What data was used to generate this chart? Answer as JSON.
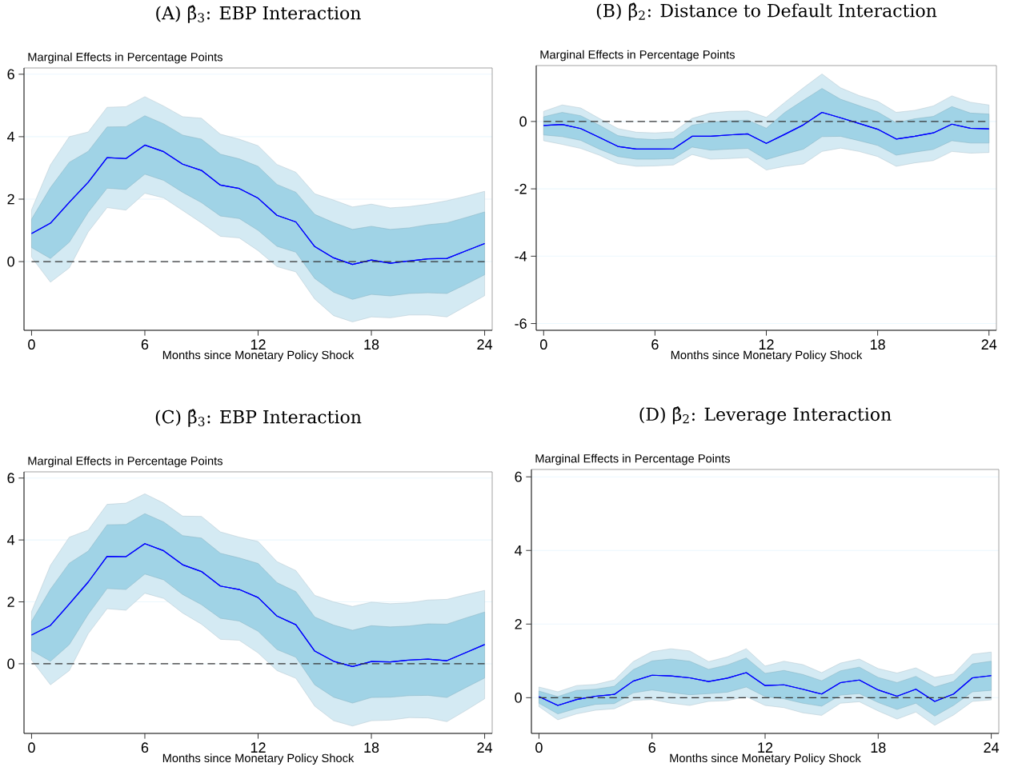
{
  "chart_data": [
    {
      "type": "line",
      "title": "(A) β̂$_{3}$: EBP Interaction",
      "ylabel": "Marginal Effects in Percentage Points",
      "xlabel": "Months since Monetary Policy Shock",
      "x": [
        0,
        1,
        2,
        3,
        4,
        5,
        6,
        7,
        8,
        9,
        10,
        11,
        12,
        13,
        14,
        15,
        16,
        17,
        18,
        19,
        20,
        21,
        22,
        23,
        24
      ],
      "xlim": [
        -0.4,
        24.4
      ],
      "ylim": [
        -2.2,
        6.2
      ],
      "xticks": [
        0,
        6,
        12,
        18,
        24
      ],
      "yticks": [
        0,
        2,
        4,
        6
      ],
      "grid": "y",
      "ref_lines": [
        {
          "axis": "y",
          "value": 0,
          "line_style": "dashed",
          "color": "#333333"
        }
      ],
      "series": [
        {
          "color": "#0000ff",
          "values": [
            0.9,
            1.23,
            1.9,
            2.54,
            3.33,
            3.3,
            3.73,
            3.52,
            3.12,
            2.92,
            2.45,
            2.34,
            2.03,
            1.48,
            1.27,
            0.48,
            0.12,
            -0.09,
            0.05,
            -0.05,
            0.02,
            0.09,
            0.1,
            0.34,
            0.58
          ],
          "lower": [
            0.14,
            -0.66,
            -0.2,
            0.95,
            1.73,
            1.65,
            2.19,
            2.04,
            1.64,
            1.24,
            0.81,
            0.76,
            0.35,
            -0.16,
            -0.33,
            -1.2,
            -1.73,
            -1.93,
            -1.77,
            -1.8,
            -1.71,
            -1.71,
            -1.77,
            -1.43,
            -1.09
          ],
          "upper": [
            1.66,
            3.1,
            4.0,
            4.15,
            4.94,
            4.96,
            5.28,
            4.98,
            4.64,
            4.59,
            4.08,
            3.92,
            3.71,
            3.11,
            2.86,
            2.17,
            1.97,
            1.75,
            1.84,
            1.72,
            1.76,
            1.84,
            1.95,
            2.09,
            2.25
          ]
        },
        {
          "color": "#0000ff",
          "values": [
            0.9,
            1.23,
            1.9,
            2.54,
            3.33,
            3.3,
            3.73,
            3.52,
            3.12,
            2.92,
            2.45,
            2.34,
            2.03,
            1.48,
            1.27,
            0.48,
            0.12,
            -0.09,
            0.05,
            -0.05,
            0.02,
            0.09,
            0.1,
            0.34,
            0.58
          ],
          "lower": [
            0.45,
            0.1,
            0.62,
            1.58,
            2.35,
            2.31,
            2.8,
            2.6,
            2.22,
            1.89,
            1.46,
            1.38,
            1.0,
            0.49,
            0.3,
            -0.54,
            -0.98,
            -1.21,
            -1.05,
            -1.1,
            -1.02,
            -1.0,
            -1.02,
            -0.73,
            -0.42
          ],
          "upper": [
            1.36,
            2.37,
            3.18,
            3.53,
            4.31,
            4.32,
            4.67,
            4.41,
            4.05,
            3.92,
            3.44,
            3.29,
            3.05,
            2.47,
            2.22,
            1.51,
            1.25,
            1.03,
            1.13,
            1.03,
            1.08,
            1.18,
            1.24,
            1.41,
            1.59
          ]
        }
      ]
    },
    {
      "type": "line",
      "title": "(B) β̂$_{2}$: Distance to Default Interaction",
      "ylabel": "Marginal Effects in Percentage Points",
      "xlabel": "Months since Monetary Policy Shock",
      "x": [
        0,
        1,
        2,
        3,
        4,
        5,
        6,
        7,
        8,
        9,
        10,
        11,
        12,
        13,
        14,
        15,
        16,
        17,
        18,
        19,
        20,
        21,
        22,
        23,
        24
      ],
      "xlim": [
        -0.4,
        24.4
      ],
      "ylim": [
        -6.2,
        1.66
      ],
      "xticks": [
        0,
        6,
        12,
        18,
        24
      ],
      "yticks": [
        -6,
        -4,
        -2,
        0
      ],
      "grid": "y",
      "ref_lines": [
        {
          "axis": "y",
          "value": 0,
          "line_style": "dashed",
          "color": "#333333"
        }
      ],
      "series": [
        {
          "color": "#0000ff",
          "values": [
            -0.12,
            -0.09,
            -0.21,
            -0.47,
            -0.74,
            -0.82,
            -0.82,
            -0.81,
            -0.44,
            -0.44,
            -0.4,
            -0.37,
            -0.65,
            -0.38,
            -0.1,
            0.27,
            0.11,
            -0.06,
            -0.23,
            -0.52,
            -0.44,
            -0.34,
            -0.08,
            -0.2,
            -0.22
          ],
          "lower": [
            -0.57,
            -0.68,
            -0.8,
            -1.0,
            -1.25,
            -1.33,
            -1.32,
            -1.29,
            -0.98,
            -1.12,
            -1.1,
            -1.07,
            -1.44,
            -1.33,
            -1.26,
            -0.89,
            -0.79,
            -0.89,
            -1.04,
            -1.33,
            -1.23,
            -1.16,
            -0.89,
            -0.94,
            -0.92
          ],
          "upper": [
            0.3,
            0.49,
            0.4,
            0.09,
            -0.21,
            -0.32,
            -0.34,
            -0.31,
            0.09,
            0.25,
            0.3,
            0.31,
            0.12,
            0.57,
            1.0,
            1.41,
            1.0,
            0.77,
            0.6,
            0.27,
            0.33,
            0.46,
            0.76,
            0.57,
            0.49
          ]
        },
        {
          "color": "#0000ff",
          "values": [
            -0.12,
            -0.09,
            -0.21,
            -0.47,
            -0.74,
            -0.82,
            -0.82,
            -0.81,
            -0.44,
            -0.44,
            -0.4,
            -0.37,
            -0.65,
            -0.38,
            -0.1,
            0.27,
            0.11,
            -0.06,
            -0.23,
            -0.52,
            -0.44,
            -0.34,
            -0.08,
            -0.2,
            -0.22
          ],
          "lower": [
            -0.4,
            -0.45,
            -0.56,
            -0.82,
            -1.04,
            -1.12,
            -1.12,
            -1.1,
            -0.76,
            -0.85,
            -0.82,
            -0.8,
            -1.13,
            -0.97,
            -0.82,
            -0.45,
            -0.44,
            -0.57,
            -0.71,
            -1.0,
            -0.91,
            -0.83,
            -0.57,
            -0.64,
            -0.64
          ],
          "upper": [
            0.14,
            0.27,
            0.17,
            -0.11,
            -0.42,
            -0.51,
            -0.54,
            -0.51,
            -0.11,
            -0.02,
            0.02,
            0.04,
            -0.2,
            0.27,
            0.63,
            0.98,
            0.66,
            0.47,
            0.28,
            -0.04,
            0.08,
            0.15,
            0.44,
            0.25,
            0.22
          ]
        }
      ]
    },
    {
      "type": "line",
      "title": "(C) β̂$_{3}$: EBP Interaction",
      "ylabel": "Marginal Effects in Percentage Points",
      "xlabel": "Months since Monetary Policy Shock",
      "x": [
        0,
        1,
        2,
        3,
        4,
        5,
        6,
        7,
        8,
        9,
        10,
        11,
        12,
        13,
        14,
        15,
        16,
        17,
        18,
        19,
        20,
        21,
        22,
        23,
        24
      ],
      "xlim": [
        -0.4,
        24.4
      ],
      "ylim": [
        -2.25,
        6.2
      ],
      "xticks": [
        0,
        6,
        12,
        18,
        24
      ],
      "yticks": [
        0,
        2,
        4,
        6
      ],
      "grid": "y",
      "ref_lines": [
        {
          "axis": "y",
          "value": 0,
          "line_style": "dashed",
          "color": "#333333"
        }
      ],
      "series": [
        {
          "color": "#0000ff",
          "values": [
            0.93,
            1.24,
            1.93,
            2.64,
            3.47,
            3.46,
            3.88,
            3.65,
            3.2,
            2.98,
            2.51,
            2.4,
            2.14,
            1.54,
            1.26,
            0.41,
            0.08,
            -0.09,
            0.07,
            0.06,
            0.12,
            0.15,
            0.1,
            0.36,
            0.62
          ],
          "lower": [
            0.12,
            -0.68,
            -0.22,
            0.97,
            1.78,
            1.73,
            2.28,
            2.11,
            1.64,
            1.28,
            0.79,
            0.76,
            0.35,
            -0.22,
            -0.47,
            -1.37,
            -1.84,
            -2.01,
            -1.84,
            -1.82,
            -1.74,
            -1.75,
            -1.87,
            -1.51,
            -1.13
          ],
          "upper": [
            1.69,
            3.18,
            4.09,
            4.32,
            5.15,
            5.19,
            5.49,
            5.19,
            4.77,
            4.76,
            4.26,
            4.09,
            3.95,
            3.3,
            3.01,
            2.21,
            2.0,
            1.85,
            1.99,
            1.94,
            1.97,
            2.06,
            2.08,
            2.23,
            2.37
          ]
        },
        {
          "color": "#0000ff",
          "values": [
            0.93,
            1.24,
            1.93,
            2.64,
            3.47,
            3.46,
            3.88,
            3.65,
            3.2,
            2.98,
            2.51,
            2.4,
            2.14,
            1.54,
            1.26,
            0.41,
            0.08,
            -0.09,
            0.07,
            0.06,
            0.12,
            0.15,
            0.1,
            0.36,
            0.62
          ],
          "lower": [
            0.43,
            0.08,
            0.62,
            1.6,
            2.43,
            2.4,
            2.9,
            2.71,
            2.24,
            1.91,
            1.47,
            1.38,
            1.05,
            0.46,
            0.21,
            -0.68,
            -1.08,
            -1.27,
            -1.09,
            -1.08,
            -1.03,
            -1.02,
            -1.09,
            -0.77,
            -0.46
          ],
          "upper": [
            1.37,
            2.41,
            3.25,
            3.64,
            4.49,
            4.5,
            4.85,
            4.58,
            4.14,
            4.06,
            3.57,
            3.42,
            3.24,
            2.62,
            2.33,
            1.51,
            1.25,
            1.08,
            1.23,
            1.19,
            1.22,
            1.29,
            1.28,
            1.48,
            1.67
          ]
        }
      ]
    },
    {
      "type": "line",
      "title": "(D) β̂$_{2}$: Leverage Interaction",
      "ylabel": "Marginal Effects in Percentage Points",
      "xlabel": "Months since Monetary Policy Shock",
      "x": [
        0,
        1,
        2,
        3,
        4,
        5,
        6,
        7,
        8,
        9,
        10,
        11,
        12,
        13,
        14,
        15,
        16,
        17,
        18,
        19,
        20,
        21,
        22,
        23,
        24
      ],
      "xlim": [
        -0.4,
        24.4
      ],
      "ylim": [
        -0.97,
        6.2
      ],
      "xticks": [
        0,
        6,
        12,
        18,
        24
      ],
      "yticks": [
        0,
        2,
        4,
        6
      ],
      "grid": "y",
      "ref_lines": [
        {
          "axis": "y",
          "value": 0,
          "line_style": "dashed",
          "color": "#333333"
        }
      ],
      "series": [
        {
          "color": "#0000ff",
          "values": [
            0.03,
            -0.21,
            -0.05,
            0.04,
            0.09,
            0.45,
            0.61,
            0.59,
            0.54,
            0.44,
            0.53,
            0.68,
            0.33,
            0.35,
            0.23,
            0.1,
            0.41,
            0.48,
            0.21,
            0.04,
            0.23,
            -0.1,
            0.1,
            0.54,
            0.6
          ],
          "lower": [
            -0.24,
            -0.6,
            -0.44,
            -0.34,
            -0.3,
            -0.07,
            -0.05,
            -0.15,
            -0.21,
            -0.1,
            -0.08,
            0.03,
            -0.21,
            -0.27,
            -0.41,
            -0.48,
            -0.15,
            -0.11,
            -0.36,
            -0.58,
            -0.39,
            -0.75,
            -0.47,
            -0.1,
            -0.06
          ],
          "upper": [
            0.29,
            0.16,
            0.33,
            0.36,
            0.48,
            0.98,
            1.25,
            1.33,
            1.27,
            0.98,
            1.11,
            1.33,
            0.86,
            0.99,
            0.9,
            0.68,
            0.94,
            1.05,
            0.79,
            0.67,
            0.81,
            0.55,
            0.64,
            1.18,
            1.24
          ]
        },
        {
          "color": "#0000ff",
          "values": [
            0.03,
            -0.21,
            -0.05,
            0.04,
            0.09,
            0.45,
            0.61,
            0.59,
            0.54,
            0.44,
            0.53,
            0.68,
            0.33,
            0.35,
            0.23,
            0.1,
            0.41,
            0.48,
            0.21,
            0.04,
            0.23,
            -0.1,
            0.1,
            0.54,
            0.6
          ],
          "lower": [
            -0.15,
            -0.44,
            -0.29,
            -0.18,
            -0.16,
            0.13,
            0.21,
            0.14,
            0.08,
            0.11,
            0.15,
            0.29,
            0.03,
            -0.03,
            -0.15,
            -0.23,
            0.07,
            0.11,
            -0.13,
            -0.32,
            -0.15,
            -0.5,
            -0.21,
            0.16,
            0.2
          ],
          "upper": [
            0.18,
            0.03,
            0.2,
            0.23,
            0.31,
            0.76,
            1.0,
            1.05,
            0.99,
            0.77,
            0.89,
            1.08,
            0.66,
            0.74,
            0.63,
            0.46,
            0.73,
            0.83,
            0.55,
            0.41,
            0.58,
            0.29,
            0.44,
            0.92,
            0.99
          ]
        }
      ]
    }
  ]
}
